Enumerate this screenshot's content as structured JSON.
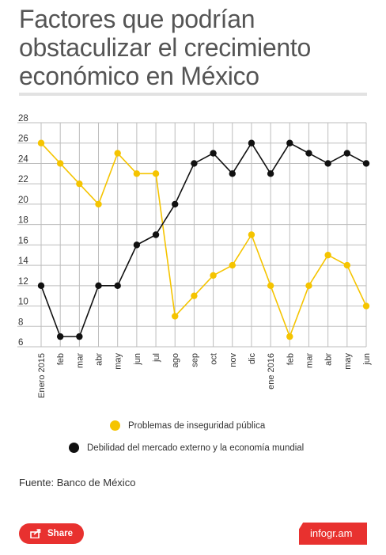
{
  "title": "Factores que podrían obstaculizar el crecimiento económico en México",
  "source": "Fuente: Banco de México",
  "share_label": "Share",
  "brand_label": "infogr.am",
  "colors": {
    "series_yellow": "#f5c400",
    "series_black": "#111111",
    "grid": "#bdbdbd",
    "accent_red": "#e8312f"
  },
  "chart_data": {
    "type": "line",
    "title": "Factores que podrían obstaculizar el crecimiento económico en México",
    "xlabel": "",
    "ylabel": "",
    "categories": [
      "Enero 2015",
      "feb",
      "mar",
      "abr",
      "may",
      "jun",
      "jul",
      "ago",
      "sep",
      "oct",
      "nov",
      "dic",
      "ene 2016",
      "feb",
      "mar",
      "abr",
      "may",
      "jun"
    ],
    "ylim": [
      6,
      28
    ],
    "yticks": [
      28,
      26,
      24,
      22,
      20,
      18,
      16,
      14,
      12,
      10,
      8,
      6
    ],
    "grid": true,
    "legend_position": "bottom",
    "series": [
      {
        "name": "Problemas de inseguridad pública",
        "color": "#f5c400",
        "values": [
          26,
          24,
          22,
          20,
          25,
          23,
          23,
          9,
          11,
          13,
          14,
          17,
          12,
          7,
          12,
          15,
          14,
          10
        ]
      },
      {
        "name": "Debilidad del mercado externo y la economía mundial",
        "color": "#111111",
        "values": [
          12,
          7,
          7,
          12,
          12,
          16,
          17,
          20,
          24,
          25,
          23,
          26,
          23,
          26,
          25,
          24,
          25,
          24
        ]
      }
    ]
  }
}
